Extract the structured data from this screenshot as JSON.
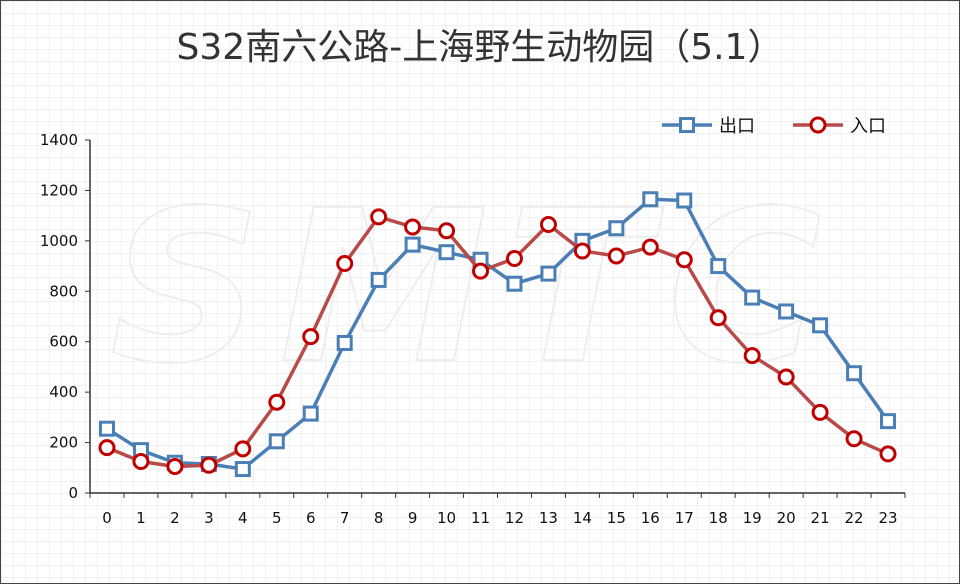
{
  "title": "S32南六公路-上海野生动物园（5.1）",
  "watermark": "SMTC",
  "colors": {
    "exit": "#4a7fb5",
    "entry": "#b84a4a",
    "entry_marker": "#c00000",
    "axis": "#333333"
  },
  "chart_data": {
    "type": "line",
    "title": "S32南六公路-上海野生动物园（5.1）",
    "xlabel": "",
    "ylabel": "",
    "ylim": [
      0,
      1400
    ],
    "yticks": [
      0,
      200,
      400,
      600,
      800,
      1000,
      1200,
      1400
    ],
    "x": [
      0,
      1,
      2,
      3,
      4,
      5,
      6,
      7,
      8,
      9,
      10,
      11,
      12,
      13,
      14,
      15,
      16,
      17,
      18,
      19,
      20,
      21,
      22,
      23
    ],
    "legend_position": "top-right",
    "grid": false,
    "series": [
      {
        "name": "出口",
        "marker": "square",
        "values": [
          255,
          170,
          120,
          115,
          95,
          205,
          315,
          595,
          845,
          985,
          955,
          925,
          830,
          870,
          1000,
          1050,
          1165,
          1160,
          900,
          775,
          720,
          665,
          475,
          285
        ]
      },
      {
        "name": "入口",
        "marker": "circle",
        "values": [
          180,
          125,
          105,
          110,
          175,
          360,
          620,
          910,
          1095,
          1055,
          1040,
          880,
          930,
          1065,
          960,
          940,
          975,
          925,
          695,
          545,
          460,
          320,
          215,
          155
        ]
      }
    ]
  }
}
